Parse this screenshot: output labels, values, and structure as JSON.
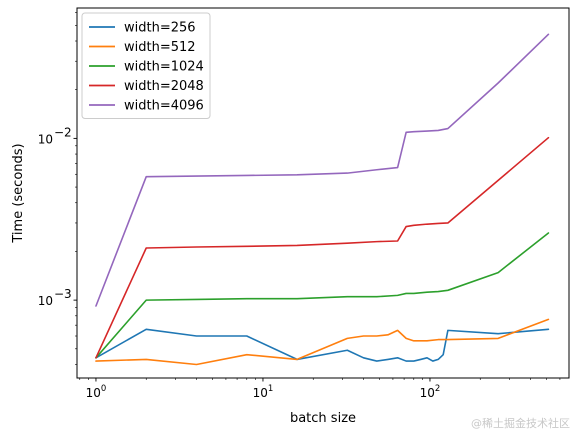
{
  "chart_data": {
    "type": "line",
    "title": "",
    "xlabel": "batch size",
    "ylabel": "Time (seconds)",
    "xscale": "log",
    "yscale": "log",
    "xlim": [
      0.77,
      680
    ],
    "ylim": [
      0.00033,
      0.064
    ],
    "x_major_ticks": [
      {
        "value": 1,
        "base": "10",
        "exp": "0"
      },
      {
        "value": 10,
        "base": "10",
        "exp": "1"
      },
      {
        "value": 100,
        "base": "10",
        "exp": "2"
      }
    ],
    "y_major_ticks": [
      {
        "value": 0.001,
        "base": "10",
        "exp": "−3"
      },
      {
        "value": 0.01,
        "base": "10",
        "exp": "−2"
      }
    ],
    "grid": false,
    "legend_position": "top-left",
    "series": [
      {
        "name": "width=256",
        "color": "#1f77b4",
        "x": [
          1,
          2,
          4,
          8,
          16,
          32,
          40,
          48,
          56,
          64,
          72,
          80,
          88,
          96,
          104,
          112,
          120,
          128,
          256,
          512
        ],
        "y": [
          0.00044,
          0.00066,
          0.0006,
          0.0006,
          0.00043,
          0.00049,
          0.00044,
          0.00042,
          0.00043,
          0.00044,
          0.00042,
          0.00042,
          0.00043,
          0.00044,
          0.00042,
          0.00043,
          0.00046,
          0.00065,
          0.00062,
          0.00066
        ]
      },
      {
        "name": "width=512",
        "color": "#ff7f0e",
        "x": [
          1,
          2,
          4,
          8,
          16,
          32,
          40,
          48,
          56,
          64,
          72,
          80,
          96,
          112,
          128,
          256,
          512
        ],
        "y": [
          0.00042,
          0.00043,
          0.0004,
          0.00046,
          0.00043,
          0.00058,
          0.0006,
          0.0006,
          0.00061,
          0.00065,
          0.00058,
          0.00056,
          0.00056,
          0.00057,
          0.00057,
          0.00058,
          0.00076
        ]
      },
      {
        "name": "width=1024",
        "color": "#2ca02c",
        "x": [
          1,
          2,
          4,
          8,
          16,
          32,
          48,
          64,
          72,
          80,
          96,
          112,
          128,
          256,
          512
        ],
        "y": [
          0.00044,
          0.001,
          0.00101,
          0.00102,
          0.00102,
          0.00105,
          0.00105,
          0.00107,
          0.0011,
          0.0011,
          0.00112,
          0.00113,
          0.00115,
          0.00148,
          0.0026
        ]
      },
      {
        "name": "width=2048",
        "color": "#d62728",
        "x": [
          1,
          2,
          4,
          8,
          16,
          32,
          48,
          64,
          72,
          80,
          96,
          112,
          128,
          256,
          512
        ],
        "y": [
          0.00044,
          0.0021,
          0.00213,
          0.00215,
          0.00218,
          0.00225,
          0.0023,
          0.00232,
          0.00285,
          0.0029,
          0.00295,
          0.00298,
          0.003,
          0.0055,
          0.0101
        ]
      },
      {
        "name": "width=4096",
        "color": "#9467bd",
        "x": [
          1,
          2,
          4,
          8,
          16,
          32,
          48,
          64,
          72,
          80,
          96,
          112,
          128,
          256,
          512
        ],
        "y": [
          0.00092,
          0.0058,
          0.00585,
          0.0059,
          0.00595,
          0.0061,
          0.0064,
          0.0066,
          0.0109,
          0.011,
          0.0111,
          0.0112,
          0.0115,
          0.022,
          0.044
        ]
      }
    ]
  },
  "watermark": "@稀土掘金技术社区"
}
